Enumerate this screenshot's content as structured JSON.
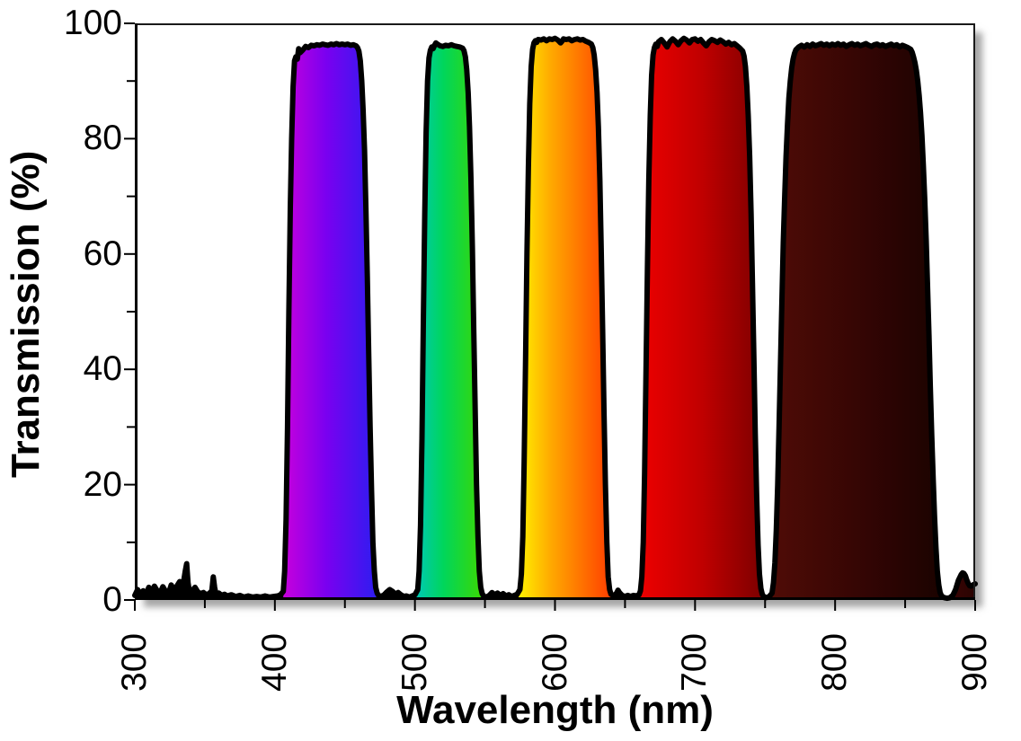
{
  "chart_data": {
    "type": "area",
    "title": "",
    "xlabel": "Wavelength (nm)",
    "ylabel": "Transmission (%)",
    "xlim": [
      300,
      900
    ],
    "ylim": [
      0,
      100
    ],
    "x_major_ticks": [
      300,
      400,
      500,
      600,
      700,
      800,
      900
    ],
    "x_minor_step": 50,
    "y_major_ticks": [
      0,
      20,
      40,
      60,
      80,
      100
    ],
    "y_minor_step": 10,
    "grid": false,
    "legend": "none",
    "curve_color": "#000000",
    "curve_width": 6,
    "axis_color": "#000000",
    "noise_region": {
      "range_nm": [
        300,
        406
      ],
      "fill": "#000000",
      "max_spike_pct": 6.3,
      "max_spike_nm": 337
    },
    "bands": [
      {
        "name": "violet-blue band",
        "range_nm": [
          406,
          474
        ],
        "peak_transmission_pct": 96.4,
        "gradient": [
          [
            0,
            "#C800DC"
          ],
          [
            0.45,
            "#7A00F0"
          ],
          [
            1,
            "#2B1EF0"
          ]
        ]
      },
      {
        "name": "green band",
        "range_nm": [
          501,
          549
        ],
        "peak_transmission_pct": 96.6,
        "gradient": [
          [
            0,
            "#00C8B4"
          ],
          [
            0.4,
            "#00D65C"
          ],
          [
            1,
            "#3CD800"
          ]
        ]
      },
      {
        "name": "orange band",
        "range_nm": [
          574,
          641
        ],
        "peak_transmission_pct": 97.4,
        "gradient": [
          [
            0,
            "#FFF200"
          ],
          [
            0.35,
            "#FFA800"
          ],
          [
            1,
            "#FF3C00"
          ]
        ]
      },
      {
        "name": "red band",
        "range_nm": [
          660,
          750
        ],
        "peak_transmission_pct": 97.4,
        "gradient": [
          [
            0,
            "#EE0000"
          ],
          [
            0.5,
            "#C00000"
          ],
          [
            1,
            "#7A0000"
          ]
        ]
      },
      {
        "name": "near-infrared band",
        "range_nm": [
          753,
          878
        ],
        "peak_transmission_pct": 96.5,
        "gradient": [
          [
            0,
            "#500C06"
          ],
          [
            0.55,
            "#330504"
          ],
          [
            1,
            "#1A0300"
          ]
        ]
      },
      {
        "name": "900nm edge bump",
        "range_nm": [
          882,
          900
        ],
        "peak_transmission_pct": 4.7,
        "gradient": [
          [
            0,
            "#3A0504"
          ],
          [
            1,
            "#2A0302"
          ]
        ]
      }
    ],
    "points": [
      [
        300,
        0.8
      ],
      [
        302,
        1.8
      ],
      [
        304,
        1.0
      ],
      [
        306,
        1.6
      ],
      [
        308,
        1.0
      ],
      [
        310,
        2.2
      ],
      [
        312,
        1.4
      ],
      [
        314,
        2.4
      ],
      [
        316,
        1.6
      ],
      [
        318,
        1.2
      ],
      [
        320,
        2.3
      ],
      [
        322,
        1.5
      ],
      [
        324,
        1.1
      ],
      [
        326,
        2.6
      ],
      [
        328,
        1.8
      ],
      [
        330,
        2.4
      ],
      [
        332,
        3.2
      ],
      [
        334,
        2.6
      ],
      [
        335,
        3.4
      ],
      [
        336,
        5.0
      ],
      [
        337,
        6.3
      ],
      [
        338,
        3.0
      ],
      [
        339,
        1.4
      ],
      [
        341,
        1.6
      ],
      [
        343,
        2.2
      ],
      [
        345,
        1.4
      ],
      [
        347,
        1.1
      ],
      [
        349,
        1.3
      ],
      [
        351,
        0.9
      ],
      [
        353,
        1.1
      ],
      [
        355,
        1.6
      ],
      [
        356,
        4.0
      ],
      [
        357,
        2.2
      ],
      [
        358,
        0.9
      ],
      [
        360,
        1.2
      ],
      [
        362,
        0.8
      ],
      [
        364,
        1.0
      ],
      [
        366,
        0.7
      ],
      [
        369,
        0.9
      ],
      [
        372,
        0.6
      ],
      [
        375,
        0.8
      ],
      [
        378,
        0.5
      ],
      [
        381,
        0.7
      ],
      [
        384,
        0.5
      ],
      [
        387,
        0.6
      ],
      [
        390,
        0.5
      ],
      [
        393,
        0.7
      ],
      [
        396,
        0.5
      ],
      [
        399,
        0.6
      ],
      [
        402,
        0.7
      ],
      [
        404,
        0.9
      ],
      [
        406,
        1.5
      ],
      [
        407,
        5
      ],
      [
        408,
        14
      ],
      [
        409,
        30
      ],
      [
        410,
        50
      ],
      [
        411,
        68
      ],
      [
        412,
        80
      ],
      [
        413,
        89
      ],
      [
        414,
        93.5
      ],
      [
        415,
        94.2
      ],
      [
        416,
        93.8
      ],
      [
        417,
        95.6
      ],
      [
        418,
        94.9
      ],
      [
        420,
        95.4
      ],
      [
        422,
        96.0
      ],
      [
        424,
        95.8
      ],
      [
        426,
        96.2
      ],
      [
        428,
        96.1
      ],
      [
        430,
        96.3
      ],
      [
        432,
        96.2
      ],
      [
        434,
        96.4
      ],
      [
        436,
        96.3
      ],
      [
        438,
        96.2
      ],
      [
        440,
        96.4
      ],
      [
        442,
        96.3
      ],
      [
        444,
        96.5
      ],
      [
        446,
        96.3
      ],
      [
        448,
        96.4
      ],
      [
        450,
        96.3
      ],
      [
        452,
        96.4
      ],
      [
        454,
        96.2
      ],
      [
        456,
        96.3
      ],
      [
        458,
        96.1
      ],
      [
        459,
        95.8
      ],
      [
        460,
        95.2
      ],
      [
        461,
        93.5
      ],
      [
        462,
        90
      ],
      [
        463,
        85
      ],
      [
        464,
        78
      ],
      [
        465,
        68
      ],
      [
        466,
        56
      ],
      [
        467,
        43
      ],
      [
        468,
        30
      ],
      [
        469,
        19
      ],
      [
        470,
        10
      ],
      [
        471,
        5
      ],
      [
        472,
        2.2
      ],
      [
        473,
        1.2
      ],
      [
        474,
        0.8
      ],
      [
        476,
        0.6
      ],
      [
        478,
        0.9
      ],
      [
        480,
        1.4
      ],
      [
        482,
        1.8
      ],
      [
        484,
        1.5
      ],
      [
        486,
        1.0
      ],
      [
        488,
        1.3
      ],
      [
        490,
        0.9
      ],
      [
        492,
        0.6
      ],
      [
        494,
        0.7
      ],
      [
        496,
        0.5
      ],
      [
        498,
        0.7
      ],
      [
        500,
        0.9
      ],
      [
        502,
        1.8
      ],
      [
        503,
        5
      ],
      [
        504,
        13
      ],
      [
        505,
        28
      ],
      [
        506,
        48
      ],
      [
        507,
        67
      ],
      [
        508,
        81
      ],
      [
        509,
        90
      ],
      [
        510,
        94
      ],
      [
        511,
        95.3
      ],
      [
        512,
        95.9
      ],
      [
        513,
        95.6
      ],
      [
        514,
        96.2
      ],
      [
        515,
        96.6
      ],
      [
        516,
        96.4
      ],
      [
        518,
        96.1
      ],
      [
        520,
        96.0
      ],
      [
        522,
        96.2
      ],
      [
        524,
        96.1
      ],
      [
        526,
        96.3
      ],
      [
        528,
        96.1
      ],
      [
        530,
        96.0
      ],
      [
        532,
        95.9
      ],
      [
        534,
        95.7
      ],
      [
        535,
        95.3
      ],
      [
        536,
        94.2
      ],
      [
        537,
        92
      ],
      [
        538,
        88
      ],
      [
        539,
        82
      ],
      [
        540,
        73
      ],
      [
        541,
        61
      ],
      [
        542,
        47
      ],
      [
        543,
        33
      ],
      [
        544,
        20
      ],
      [
        545,
        11
      ],
      [
        546,
        5
      ],
      [
        547,
        2.2
      ],
      [
        548,
        1.1
      ],
      [
        549,
        0.7
      ],
      [
        551,
        0.5
      ],
      [
        553,
        0.8
      ],
      [
        555,
        1.3
      ],
      [
        557,
        0.9
      ],
      [
        559,
        1.2
      ],
      [
        561,
        0.8
      ],
      [
        563,
        1.1
      ],
      [
        565,
        0.7
      ],
      [
        567,
        0.9
      ],
      [
        569,
        0.6
      ],
      [
        571,
        0.8
      ],
      [
        573,
        1.0
      ],
      [
        575,
        1.8
      ],
      [
        576,
        4.5
      ],
      [
        577,
        11
      ],
      [
        578,
        24
      ],
      [
        579,
        42
      ],
      [
        580,
        60
      ],
      [
        581,
        75
      ],
      [
        582,
        86
      ],
      [
        583,
        92.5
      ],
      [
        584,
        95.5
      ],
      [
        585,
        96.6
      ],
      [
        586,
        97.0
      ],
      [
        587,
        96.7
      ],
      [
        588,
        97.2
      ],
      [
        590,
        97.1
      ],
      [
        592,
        97.3
      ],
      [
        594,
        97.0
      ],
      [
        596,
        97.3
      ],
      [
        598,
        97.2
      ],
      [
        600,
        97.4
      ],
      [
        602,
        97.1
      ],
      [
        604,
        96.6
      ],
      [
        605,
        96.9
      ],
      [
        606,
        97.3
      ],
      [
        608,
        97.2
      ],
      [
        610,
        97.3
      ],
      [
        612,
        97.0
      ],
      [
        614,
        97.2
      ],
      [
        616,
        97.3
      ],
      [
        618,
        97.1
      ],
      [
        620,
        97.2
      ],
      [
        622,
        96.9
      ],
      [
        624,
        96.7
      ],
      [
        626,
        96.4
      ],
      [
        627,
        95.8
      ],
      [
        628,
        94.5
      ],
      [
        629,
        92
      ],
      [
        630,
        88
      ],
      [
        631,
        82
      ],
      [
        632,
        73
      ],
      [
        633,
        61
      ],
      [
        634,
        47
      ],
      [
        635,
        33
      ],
      [
        636,
        20
      ],
      [
        637,
        10
      ],
      [
        638,
        4
      ],
      [
        639,
        1.8
      ],
      [
        640,
        1.0
      ],
      [
        642,
        0.7
      ],
      [
        644,
        1.2
      ],
      [
        645,
        1.7
      ],
      [
        646,
        1.3
      ],
      [
        648,
        0.8
      ],
      [
        650,
        0.6
      ],
      [
        652,
        0.8
      ],
      [
        654,
        0.6
      ],
      [
        656,
        0.8
      ],
      [
        658,
        0.7
      ],
      [
        660,
        0.9
      ],
      [
        661,
        1.6
      ],
      [
        662,
        4
      ],
      [
        663,
        10
      ],
      [
        664,
        22
      ],
      [
        665,
        40
      ],
      [
        666,
        58
      ],
      [
        667,
        73
      ],
      [
        668,
        84
      ],
      [
        669,
        91
      ],
      [
        670,
        94.5
      ],
      [
        671,
        95.8
      ],
      [
        672,
        96.4
      ],
      [
        673,
        96.0
      ],
      [
        674,
        96.8
      ],
      [
        676,
        97.2
      ],
      [
        678,
        96.6
      ],
      [
        680,
        95.9
      ],
      [
        682,
        96.8
      ],
      [
        684,
        97.3
      ],
      [
        686,
        96.9
      ],
      [
        688,
        96.3
      ],
      [
        690,
        97.0
      ],
      [
        692,
        97.4
      ],
      [
        694,
        97.1
      ],
      [
        696,
        96.6
      ],
      [
        698,
        97.2
      ],
      [
        700,
        97.3
      ],
      [
        702,
        96.9
      ],
      [
        704,
        97.2
      ],
      [
        706,
        96.6
      ],
      [
        708,
        96.1
      ],
      [
        710,
        96.8
      ],
      [
        712,
        97.2
      ],
      [
        714,
        97.0
      ],
      [
        716,
        96.7
      ],
      [
        718,
        97.1
      ],
      [
        720,
        96.8
      ],
      [
        722,
        96.4
      ],
      [
        724,
        96.7
      ],
      [
        726,
        96.3
      ],
      [
        728,
        96.5
      ],
      [
        730,
        96.1
      ],
      [
        732,
        95.7
      ],
      [
        734,
        95.2
      ],
      [
        735,
        94.3
      ],
      [
        736,
        92.5
      ],
      [
        737,
        89
      ],
      [
        738,
        84
      ],
      [
        739,
        77
      ],
      [
        740,
        67
      ],
      [
        741,
        55
      ],
      [
        742,
        42
      ],
      [
        743,
        29
      ],
      [
        744,
        18
      ],
      [
        745,
        9.5
      ],
      [
        746,
        4.5
      ],
      [
        747,
        2.0
      ],
      [
        748,
        1.0
      ],
      [
        749,
        0.6
      ],
      [
        751,
        0.4
      ],
      [
        753,
        0.6
      ],
      [
        755,
        1.2
      ],
      [
        756,
        3
      ],
      [
        757,
        6.5
      ],
      [
        758,
        12
      ],
      [
        759,
        20
      ],
      [
        760,
        30
      ],
      [
        761,
        41
      ],
      [
        762,
        52
      ],
      [
        763,
        62
      ],
      [
        764,
        70
      ],
      [
        765,
        77
      ],
      [
        766,
        82.5
      ],
      [
        767,
        87
      ],
      [
        768,
        90
      ],
      [
        769,
        92.3
      ],
      [
        770,
        93.8
      ],
      [
        771,
        94.8
      ],
      [
        772,
        95.4
      ],
      [
        774,
        95.9
      ],
      [
        776,
        96.2
      ],
      [
        778,
        95.9
      ],
      [
        780,
        96.3
      ],
      [
        782,
        96.0
      ],
      [
        784,
        96.4
      ],
      [
        786,
        96.1
      ],
      [
        788,
        96.3
      ],
      [
        790,
        96.5
      ],
      [
        792,
        96.2
      ],
      [
        794,
        96.4
      ],
      [
        796,
        96.1
      ],
      [
        798,
        96.4
      ],
      [
        800,
        96.2
      ],
      [
        802,
        96.5
      ],
      [
        804,
        96.2
      ],
      [
        806,
        96.4
      ],
      [
        808,
        96.0
      ],
      [
        810,
        96.3
      ],
      [
        812,
        96.5
      ],
      [
        814,
        96.2
      ],
      [
        816,
        96.4
      ],
      [
        818,
        96.1
      ],
      [
        820,
        96.3
      ],
      [
        822,
        96.5
      ],
      [
        824,
        96.2
      ],
      [
        826,
        96.0
      ],
      [
        828,
        96.3
      ],
      [
        830,
        96.4
      ],
      [
        832,
        96.1
      ],
      [
        834,
        96.3
      ],
      [
        836,
        96.0
      ],
      [
        838,
        96.2
      ],
      [
        840,
        96.4
      ],
      [
        842,
        96.1
      ],
      [
        844,
        96.3
      ],
      [
        846,
        95.9
      ],
      [
        848,
        96.2
      ],
      [
        850,
        96.0
      ],
      [
        852,
        95.8
      ],
      [
        854,
        95.5
      ],
      [
        855,
        95.0
      ],
      [
        856,
        94.2
      ],
      [
        857,
        93.2
      ],
      [
        858,
        91.8
      ],
      [
        859,
        90
      ],
      [
        860,
        87.5
      ],
      [
        861,
        84.5
      ],
      [
        862,
        80.5
      ],
      [
        863,
        75.5
      ],
      [
        864,
        69.5
      ],
      [
        865,
        62.5
      ],
      [
        866,
        54.5
      ],
      [
        867,
        46
      ],
      [
        868,
        37
      ],
      [
        869,
        28.5
      ],
      [
        870,
        21
      ],
      [
        871,
        14.5
      ],
      [
        872,
        9
      ],
      [
        873,
        5
      ],
      [
        874,
        2.6
      ],
      [
        875,
        1.3
      ],
      [
        876,
        0.7
      ],
      [
        878,
        0.4
      ],
      [
        880,
        0.3
      ],
      [
        882,
        0.4
      ],
      [
        884,
        0.8
      ],
      [
        886,
        1.8
      ],
      [
        888,
        3.4
      ],
      [
        890,
        4.4
      ],
      [
        891,
        4.7
      ],
      [
        892,
        4.6
      ],
      [
        893,
        4.2
      ],
      [
        894,
        3.5
      ],
      [
        895,
        2.9
      ],
      [
        896,
        2.5
      ],
      [
        897,
        2.4
      ],
      [
        898,
        2.5
      ],
      [
        899,
        2.7
      ],
      [
        900,
        2.8
      ]
    ]
  }
}
